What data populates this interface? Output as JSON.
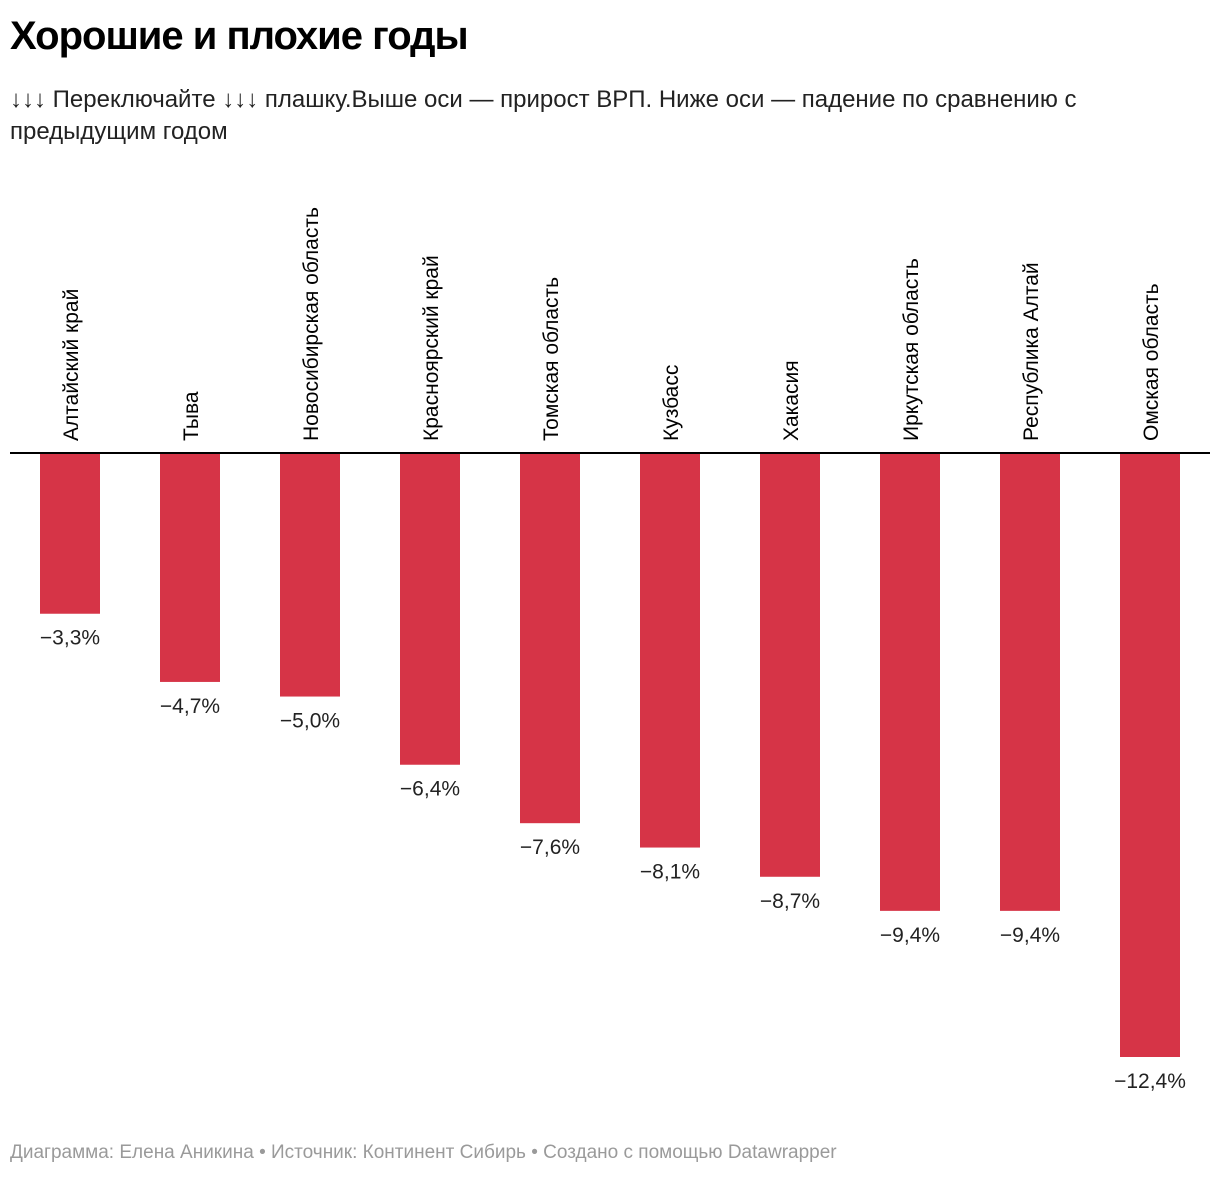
{
  "title": "Хорошие и плохие годы",
  "subtitle": "↓↓↓ Переключайте ↓↓↓ плашку.Выше оси — прирост ВРП. Ниже оси — падение по сравнению с предыдущим годом",
  "footer": "Диаграмма: Елена Аникина • Источник: Континент Сибирь • Создано с помощью Datawrapper",
  "colors": {
    "bar": "#d63447",
    "axis": "#000000"
  },
  "chart_data": {
    "type": "bar",
    "title": "Хорошие и плохие годы",
    "xlabel": "",
    "ylabel": "",
    "ylim": [
      -12.4,
      0
    ],
    "categories": [
      "Алтайский край",
      "Тыва",
      "Новосибирская область",
      "Красноярский край",
      "Томская область",
      "Кузбасс",
      "Хакасия",
      "Иркутская область",
      "Республика Алтай",
      "Омская область"
    ],
    "values": [
      -3.3,
      -4.7,
      -5.0,
      -6.4,
      -7.6,
      -8.1,
      -8.7,
      -9.4,
      -9.4,
      -12.4
    ],
    "value_labels": [
      "−3,3%",
      "−4,7%",
      "−5,0%",
      "−6,4%",
      "−7,6%",
      "−8,1%",
      "−8,7%",
      "−9,4%",
      "−9,4%",
      "−12,4%"
    ]
  }
}
